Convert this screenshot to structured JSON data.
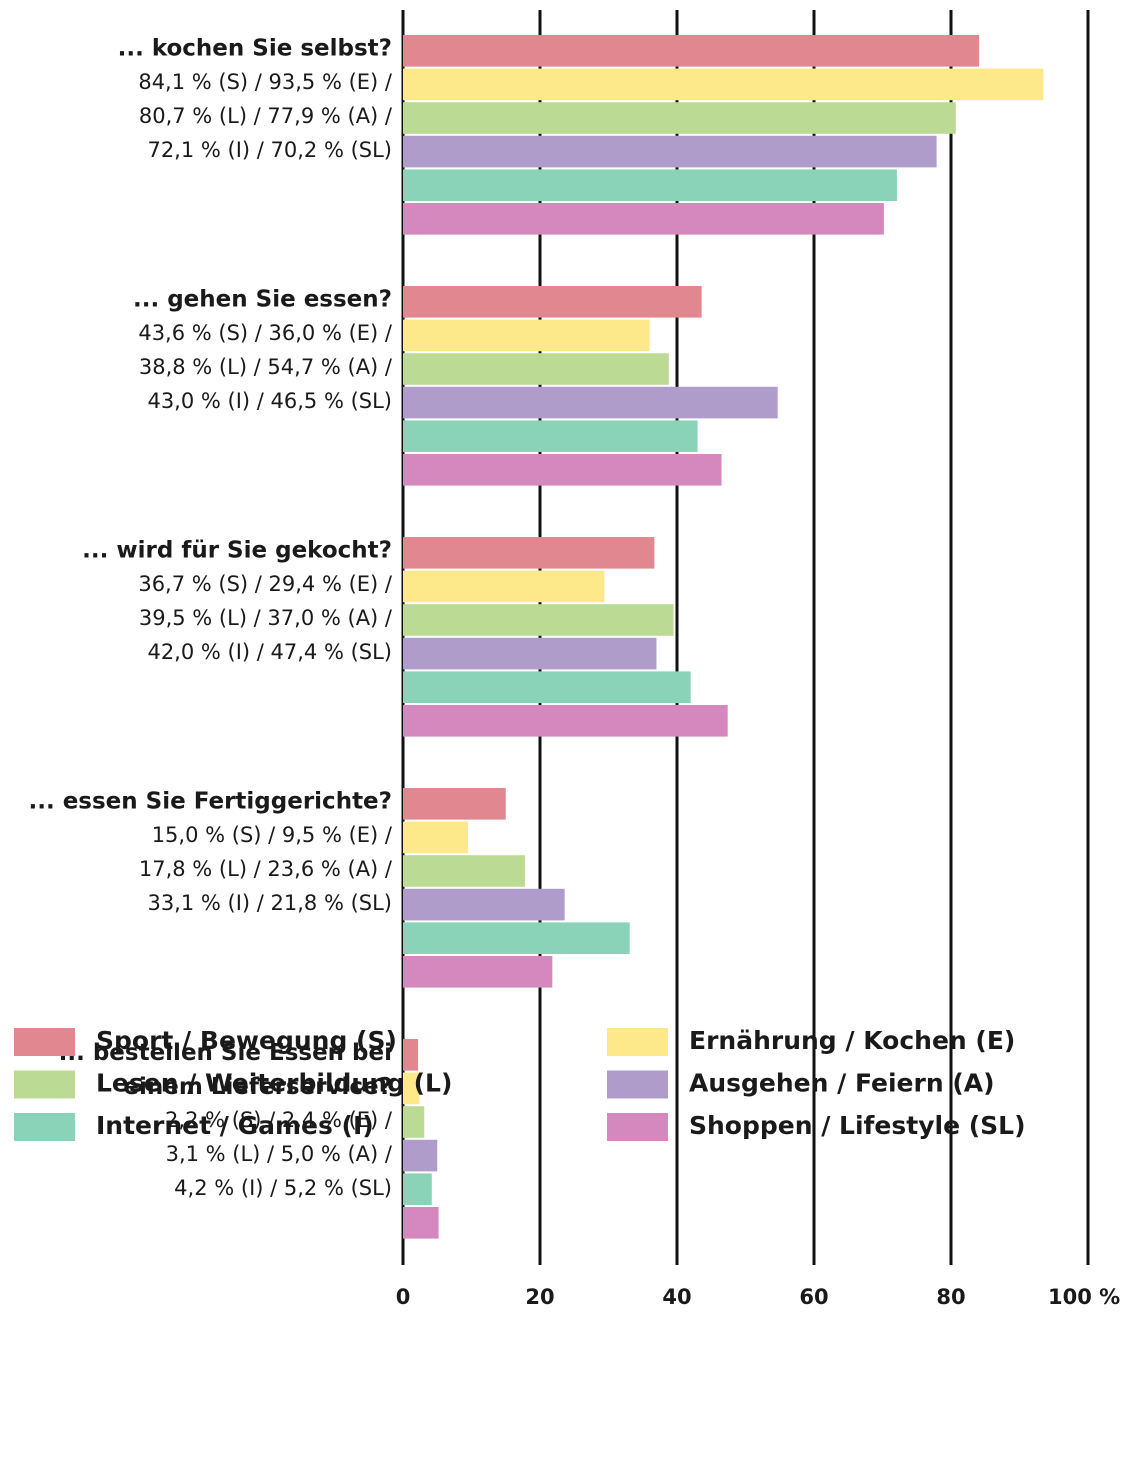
{
  "chart_data": {
    "type": "bar",
    "orientation": "horizontal",
    "categories": [
      "... kochen Sie selbst?",
      "... gehen Sie essen?",
      "... wird für Sie gekocht?",
      "... essen Sie Fertiggerichte?",
      "... bestellen Sie Essen bei einem Lieferservice?"
    ],
    "category_notes": [
      [
        "84,1 % (S) / 93,5 % (E) /",
        "80,7 % (L) / 77,9 % (A) /",
        "72,1 % (I) / 70,2 % (SL)"
      ],
      [
        "43,6 % (S) / 36,0 % (E) /",
        "38,8 % (L) / 54,7 % (A) /",
        "43,0 % (I) / 46,5 % (SL)"
      ],
      [
        "36,7 % (S) / 29,4 % (E) /",
        "39,5 % (L) / 37,0 % (A) /",
        "42,0 % (I) / 47,4 % (SL)"
      ],
      [
        "15,0 % (S) / 9,5 % (E) /",
        "17,8 % (L) / 23,6 % (A) /",
        "33,1 % (I) / 21,8 % (SL)"
      ],
      [
        "2,2 % (S) / 2,4 % (E) /",
        "3,1 % (L) / 5,0 % (A) /",
        "4,2 % (I) / 5,2 % (SL)"
      ]
    ],
    "series": [
      {
        "name": "Sport / Bewegung (S)",
        "color": "#e0878f",
        "values": [
          84.1,
          43.6,
          36.7,
          15.0,
          2.2
        ]
      },
      {
        "name": "Ernährung / Kochen (E)",
        "color": "#fde98a",
        "values": [
          93.5,
          36.0,
          29.4,
          9.5,
          2.4
        ]
      },
      {
        "name": "Lesen / Weiterbildung (L)",
        "color": "#bbdb94",
        "values": [
          80.7,
          38.8,
          39.5,
          17.8,
          3.1
        ]
      },
      {
        "name": "Ausgehen / Feiern (A)",
        "color": "#b09ccb",
        "values": [
          77.9,
          54.7,
          37.0,
          23.6,
          5.0
        ]
      },
      {
        "name": "Internet / Games (I)",
        "color": "#8bd3b8",
        "values": [
          72.1,
          43.0,
          42.0,
          33.1,
          4.2
        ]
      },
      {
        "name": "Shoppen / Lifestyle (SL)",
        "color": "#d488bd",
        "values": [
          70.2,
          46.5,
          47.4,
          21.8,
          5.2
        ]
      }
    ],
    "xlim": [
      0,
      100
    ],
    "xticks": [
      0,
      20,
      40,
      60,
      80,
      {
        "value": 100,
        "label": "100 %"
      }
    ],
    "grid": true,
    "legend": "bottom"
  }
}
